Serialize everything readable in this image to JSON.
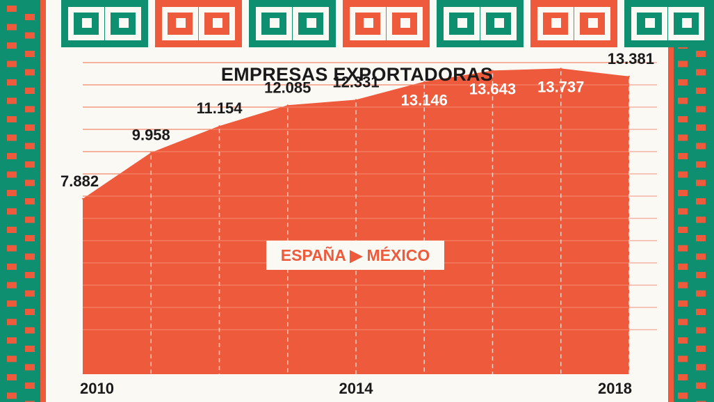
{
  "chart_data": {
    "type": "area",
    "title": "EMPRESAS EXPORTADORAS",
    "legend": "ESPAÑA ▶ MÉXICO",
    "x": [
      2010,
      2011,
      2012,
      2013,
      2014,
      2015,
      2016,
      2017,
      2018
    ],
    "x_tick_labels": [
      "2010",
      "2014",
      "2018"
    ],
    "series": [
      {
        "values": [
          7882,
          9958,
          11154,
          12085,
          12331,
          13146,
          13643,
          13737,
          13381
        ],
        "value_labels": [
          "7.882",
          "9.958",
          "11.154",
          "12.085",
          "12.331",
          "13.146",
          "13.643",
          "13.737",
          "13.381"
        ]
      }
    ],
    "ylim": [
      0,
      14000
    ],
    "grid": true
  },
  "colors": {
    "area": "#ee5a3c",
    "border_green": "#0e9070",
    "pattern_orange": "#ee5a3c",
    "background": "#fbf9f4",
    "text": "#1a1a1a",
    "label_inside": "#ffffff"
  }
}
